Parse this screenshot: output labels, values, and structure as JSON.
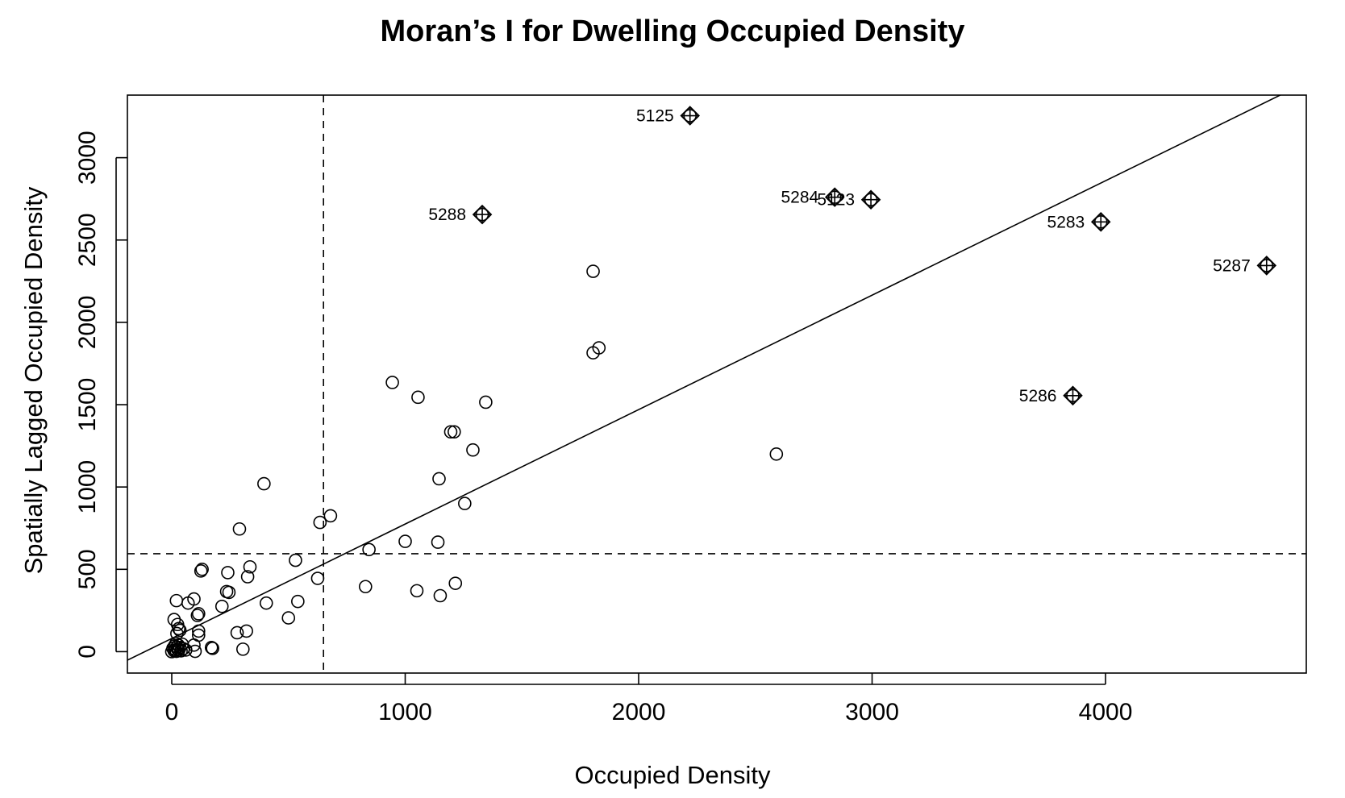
{
  "chart_data": {
    "type": "scatter",
    "title": "Moran’s I for Dwelling Occupied Density",
    "xlabel": "Occupied Density",
    "ylabel": "Spatially Lagged Occupied Density",
    "xlim": [
      -190,
      4860
    ],
    "ylim": [
      -130,
      3380
    ],
    "x_ticks": [
      0,
      1000,
      2000,
      3000,
      4000
    ],
    "y_ticks": [
      0,
      500,
      1000,
      1500,
      2000,
      2500,
      3000
    ],
    "grid": false,
    "mean_x": 650,
    "mean_y": 595,
    "regression_line": {
      "intercept": 80,
      "slope": 0.695
    },
    "points": [
      {
        "x": 0,
        "y": 0
      },
      {
        "x": 5,
        "y": 20
      },
      {
        "x": 10,
        "y": 5
      },
      {
        "x": 12,
        "y": 35
      },
      {
        "x": 15,
        "y": 10
      },
      {
        "x": 18,
        "y": 50
      },
      {
        "x": 20,
        "y": 2
      },
      {
        "x": 22,
        "y": 28
      },
      {
        "x": 25,
        "y": 15
      },
      {
        "x": 28,
        "y": 40
      },
      {
        "x": 30,
        "y": 8
      },
      {
        "x": 35,
        "y": 25
      },
      {
        "x": 40,
        "y": 5
      },
      {
        "x": 45,
        "y": 45
      },
      {
        "x": 50,
        "y": 18
      },
      {
        "x": 60,
        "y": 10
      },
      {
        "x": 10,
        "y": 195
      },
      {
        "x": 20,
        "y": 310
      },
      {
        "x": 25,
        "y": 165
      },
      {
        "x": 30,
        "y": 140
      },
      {
        "x": 22,
        "y": 110
      },
      {
        "x": 35,
        "y": 130
      },
      {
        "x": 70,
        "y": 295
      },
      {
        "x": 95,
        "y": 320
      },
      {
        "x": 100,
        "y": 2
      },
      {
        "x": 95,
        "y": 40
      },
      {
        "x": 110,
        "y": 220
      },
      {
        "x": 115,
        "y": 230
      },
      {
        "x": 115,
        "y": 125
      },
      {
        "x": 115,
        "y": 100
      },
      {
        "x": 125,
        "y": 490
      },
      {
        "x": 130,
        "y": 500
      },
      {
        "x": 170,
        "y": 25
      },
      {
        "x": 175,
        "y": 20
      },
      {
        "x": 215,
        "y": 275
      },
      {
        "x": 235,
        "y": 365
      },
      {
        "x": 240,
        "y": 480
      },
      {
        "x": 245,
        "y": 360
      },
      {
        "x": 280,
        "y": 115
      },
      {
        "x": 290,
        "y": 745
      },
      {
        "x": 305,
        "y": 15
      },
      {
        "x": 320,
        "y": 125
      },
      {
        "x": 325,
        "y": 455
      },
      {
        "x": 335,
        "y": 515
      },
      {
        "x": 395,
        "y": 1020
      },
      {
        "x": 405,
        "y": 295
      },
      {
        "x": 500,
        "y": 205
      },
      {
        "x": 530,
        "y": 555
      },
      {
        "x": 540,
        "y": 305
      },
      {
        "x": 625,
        "y": 445
      },
      {
        "x": 635,
        "y": 785
      },
      {
        "x": 680,
        "y": 825
      },
      {
        "x": 830,
        "y": 395
      },
      {
        "x": 845,
        "y": 620
      },
      {
        "x": 945,
        "y": 1635
      },
      {
        "x": 1000,
        "y": 670
      },
      {
        "x": 1050,
        "y": 370
      },
      {
        "x": 1055,
        "y": 1545
      },
      {
        "x": 1140,
        "y": 665
      },
      {
        "x": 1145,
        "y": 1050
      },
      {
        "x": 1150,
        "y": 340
      },
      {
        "x": 1195,
        "y": 1335
      },
      {
        "x": 1210,
        "y": 1335
      },
      {
        "x": 1215,
        "y": 415
      },
      {
        "x": 1255,
        "y": 900
      },
      {
        "x": 1290,
        "y": 1225
      },
      {
        "x": 1345,
        "y": 1515
      },
      {
        "x": 1805,
        "y": 2310
      },
      {
        "x": 1805,
        "y": 1815
      },
      {
        "x": 1830,
        "y": 1845
      },
      {
        "x": 2590,
        "y": 1200
      }
    ],
    "influential_points": [
      {
        "label": "5125",
        "x": 2220,
        "y": 3255
      },
      {
        "label": "5288",
        "x": 1330,
        "y": 2655
      },
      {
        "label": "5284",
        "x": 2840,
        "y": 2760
      },
      {
        "label": "5123",
        "x": 2995,
        "y": 2745
      },
      {
        "label": "5283",
        "x": 3980,
        "y": 2610
      },
      {
        "label": "5287",
        "x": 4690,
        "y": 2345
      },
      {
        "label": "5286",
        "x": 3860,
        "y": 1555
      }
    ]
  }
}
